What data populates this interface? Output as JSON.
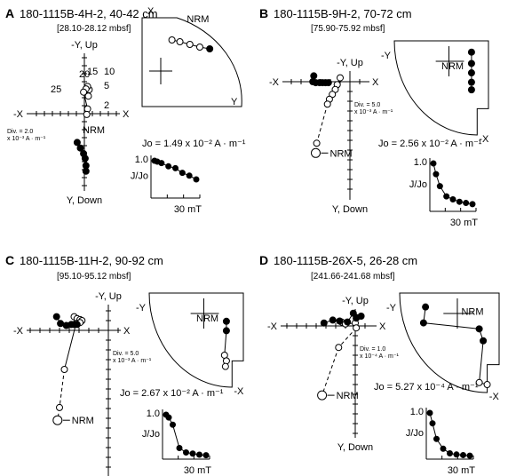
{
  "chart_data": [
    {
      "type": "scatter",
      "letter": "A",
      "title": "180-1115B-4H-2, 40-42 cm",
      "subtitle": "[28.10-28.12 mbsf]",
      "zij": {
        "up": "-Y, Up",
        "down": "Y, Down",
        "left": "-X",
        "right": "X",
        "div": [
          "Div. = 2.0",
          "x 10⁻³ A · m⁻¹"
        ],
        "steps": [
          "20",
          "15",
          "10",
          "25",
          "5",
          "2"
        ],
        "nrm": "NRM",
        "open": [
          [
            0.5,
            2.2
          ],
          [
            0.6,
            3.0
          ],
          [
            0.4,
            3.4
          ],
          [
            0.2,
            3.1
          ],
          [
            -0.1,
            2.7
          ],
          [
            0.4,
            0.6
          ],
          [
            0.3,
            -0.1
          ]
        ],
        "solid": [
          [
            -0.9,
            -3.6
          ],
          [
            -0.5,
            -4.3
          ],
          [
            -0.1,
            -5.0
          ],
          [
            0.1,
            -5.6
          ],
          [
            0.2,
            -6.5
          ],
          [
            0.2,
            -7.2
          ]
        ]
      },
      "stereo": {
        "top": "X",
        "right": "Y",
        "nrm": "NRM",
        "points": [
          [
            0.3,
            0.25,
            "open"
          ],
          [
            0.38,
            0.27,
            "open"
          ],
          [
            0.48,
            0.3,
            "open"
          ],
          [
            0.58,
            0.33,
            "open"
          ],
          [
            0.68,
            0.35,
            "solid"
          ]
        ]
      },
      "jo": "Jo = 1.49 x 10⁻² A · m⁻¹",
      "decay": {
        "ylab": "J/Jo",
        "y1": "1.0",
        "x": "30 mT",
        "points": [
          [
            0,
            1.0
          ],
          [
            2,
            0.98
          ],
          [
            5,
            0.95
          ],
          [
            10,
            0.88
          ],
          [
            15,
            0.84
          ],
          [
            20,
            0.74
          ],
          [
            25,
            0.68
          ],
          [
            30,
            0.6
          ]
        ]
      }
    },
    {
      "type": "scatter",
      "letter": "B",
      "title": "180-1115B-9H-2, 70-72 cm",
      "subtitle": "[75.90-75.92 mbsf]",
      "zij": {
        "up": "-Y, Up",
        "down": "Y, Down",
        "left": "-X",
        "right": "X",
        "div": [
          "Div. = 5.0",
          "x 10⁻³ A · m⁻¹"
        ],
        "nrm": "NRM",
        "open": [
          [
            -1.0,
            0.4
          ],
          [
            -1.3,
            -0.3
          ],
          [
            -1.5,
            -0.8
          ],
          [
            -1.8,
            -1.3
          ],
          [
            -2.1,
            -1.8
          ],
          [
            -2.3,
            -2.3
          ],
          [
            -3.4,
            -6.3
          ],
          [
            -3.5,
            -7.3
          ]
        ],
        "solid": [
          [
            -3.7,
            0.6
          ],
          [
            -3.8,
            0.0
          ],
          [
            -3.5,
            -0.1
          ],
          [
            -3.1,
            -0.1
          ],
          [
            -2.8,
            -0.1
          ],
          [
            -2.5,
            -0.1
          ],
          [
            -2.2,
            -0.1
          ]
        ]
      },
      "stereo": {
        "top": "-Y",
        "right": "-X",
        "nrm": "NRM",
        "points": [
          [
            0.82,
            0.12,
            "solid"
          ],
          [
            0.82,
            0.24,
            "solid"
          ],
          [
            0.82,
            0.34,
            "solid"
          ],
          [
            0.82,
            0.44,
            "solid"
          ],
          [
            0.82,
            0.52,
            "solid"
          ]
        ]
      },
      "jo": "Jo = 2.56 x 10⁻² A · m⁻¹",
      "decay": {
        "ylab": "J/Jo",
        "y1": "1.0",
        "x": "30 mT",
        "points": [
          [
            0,
            1.0
          ],
          [
            2,
            0.82
          ],
          [
            5,
            0.62
          ],
          [
            10,
            0.45
          ],
          [
            15,
            0.4
          ],
          [
            20,
            0.36
          ],
          [
            25,
            0.34
          ],
          [
            30,
            0.32
          ]
        ]
      }
    },
    {
      "type": "scatter",
      "letter": "C",
      "title": "180-1115B-11H-2, 90-92 cm",
      "subtitle": "[95.10-95.12 mbsf]",
      "zij": {
        "up": "-Y, Up",
        "down": "Y, Down",
        "left": "-X",
        "right": "X",
        "div": [
          "Div. = 5.0",
          "x 10⁻³ A · m⁻¹"
        ],
        "nrm": "NRM",
        "open": [
          [
            -3.5,
            1.4
          ],
          [
            -3.2,
            1.2
          ],
          [
            -2.9,
            1.1
          ],
          [
            -2.7,
            1.0
          ],
          [
            -2.9,
            0.8
          ],
          [
            -3.3,
            0.7
          ],
          [
            -4.5,
            -4.0
          ],
          [
            -5.0,
            -7.9
          ],
          [
            -5.2,
            -9.2
          ]
        ],
        "solid": [
          [
            -5.3,
            1.4
          ],
          [
            -4.9,
            0.7
          ],
          [
            -4.3,
            0.5
          ],
          [
            -3.8,
            0.6
          ],
          [
            -3.5,
            0.6
          ],
          [
            -3.2,
            0.6
          ]
        ]
      },
      "stereo": {
        "top": "-Y",
        "right": "-X",
        "nrm": "NRM",
        "points": [
          [
            0.82,
            0.3,
            "solid"
          ],
          [
            0.82,
            0.4,
            "solid"
          ],
          [
            0.8,
            0.66,
            "open"
          ],
          [
            0.82,
            0.72,
            "open"
          ],
          [
            0.81,
            0.78,
            "open"
          ]
        ]
      },
      "jo": "Jo = 2.67 x 10⁻² A · m⁻¹",
      "decay": {
        "ylab": "J/Jo",
        "y1": "1.0",
        "x": "30 mT",
        "points": [
          [
            0,
            1.0
          ],
          [
            2,
            0.95
          ],
          [
            5,
            0.82
          ],
          [
            10,
            0.4
          ],
          [
            15,
            0.32
          ],
          [
            20,
            0.3
          ],
          [
            25,
            0.28
          ],
          [
            30,
            0.27
          ]
        ]
      }
    },
    {
      "type": "scatter",
      "letter": "D",
      "title": "180-1115B-26X-5, 26-28 cm",
      "subtitle": "[241.66-241.68 mbsf]",
      "zij": {
        "up": "-Y, Up",
        "down": "Y, Down",
        "left": "-X",
        "right": "X",
        "div": [
          "Div. = 1.0",
          "x 10⁻⁴ A · m⁻¹"
        ],
        "nrm": "NRM",
        "open": [
          [
            -1.4,
            0.4
          ],
          [
            -1.0,
            0.2
          ],
          [
            0.0,
            0.3
          ],
          [
            0.1,
            -0.2
          ],
          [
            -1.7,
            -2.2
          ],
          [
            -3.4,
            -7.1
          ]
        ],
        "solid": [
          [
            -3.2,
            0.3
          ],
          [
            -2.3,
            0.6
          ],
          [
            -1.6,
            0.5
          ],
          [
            -0.8,
            0.4
          ],
          [
            -0.2,
            1.3
          ],
          [
            0.6,
            1.0
          ],
          [
            0.1,
            0.8
          ]
        ]
      },
      "stereo": {
        "top": "-Y",
        "right": "-X",
        "nrm": "NRM",
        "points": [
          [
            0.26,
            0.14,
            "solid"
          ],
          [
            0.24,
            0.3,
            "solid"
          ],
          [
            0.8,
            0.36,
            "solid"
          ],
          [
            0.84,
            0.48,
            "solid"
          ],
          [
            0.8,
            0.9,
            "open"
          ],
          [
            0.88,
            0.92,
            "open"
          ]
        ]
      },
      "jo": "Jo = 5.27 x 10⁻⁴ A · m⁻¹",
      "decay": {
        "ylab": "J/Jo",
        "y1": "1.0",
        "x": "30 mT",
        "points": [
          [
            0,
            1.0
          ],
          [
            2,
            0.82
          ],
          [
            5,
            0.55
          ],
          [
            10,
            0.38
          ],
          [
            15,
            0.3
          ],
          [
            20,
            0.28
          ],
          [
            25,
            0.27
          ],
          [
            30,
            0.26
          ]
        ]
      }
    }
  ]
}
